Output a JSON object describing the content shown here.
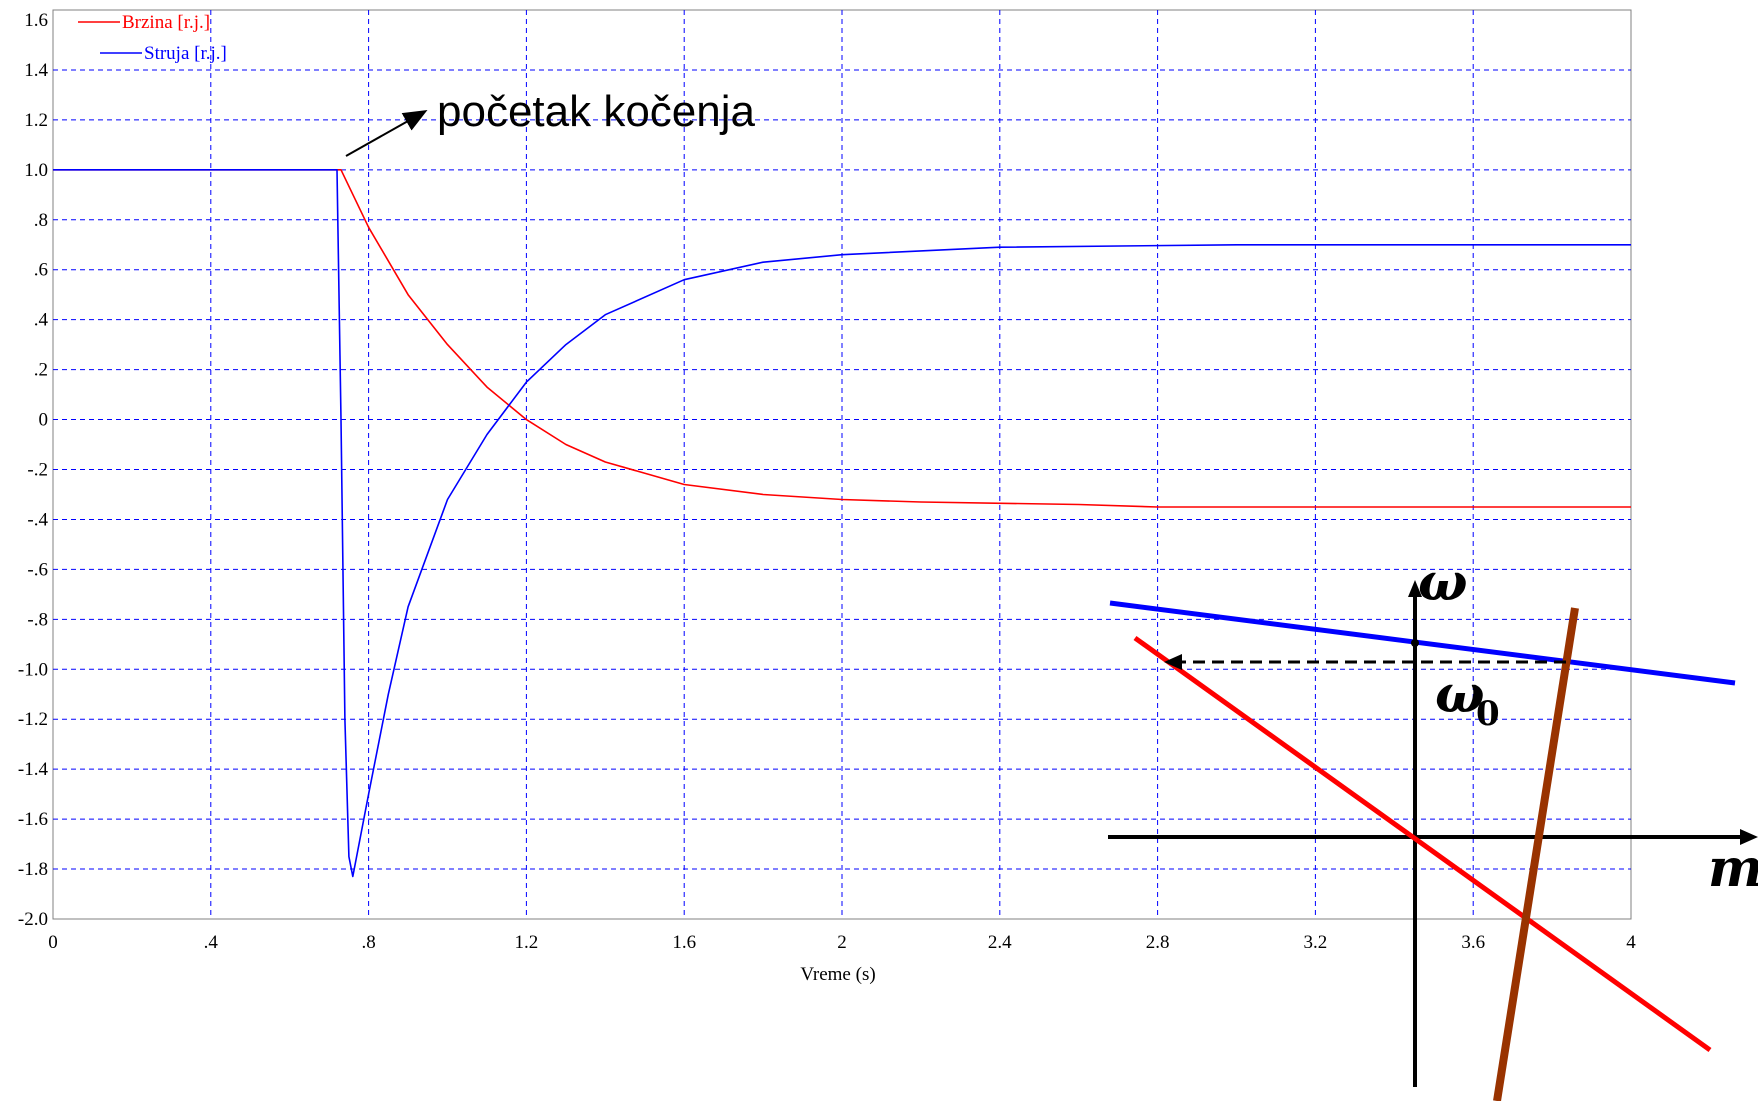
{
  "chart_data": [
    {
      "type": "line",
      "title": "",
      "xlabel": "Vreme (s)",
      "ylabel": "",
      "xlim": [
        0,
        4
      ],
      "ylim": [
        -2.0,
        1.7
      ],
      "grid": true,
      "legend_position": "top-left",
      "x_ticks": [
        "0",
        ".4",
        ".8",
        "1.2",
        "1.6",
        "2",
        "2.4",
        "2.8",
        "3.2",
        "3.6",
        "4"
      ],
      "y_ticks": [
        "1.6",
        "1.4",
        "1.2",
        "1.0",
        ".8",
        ".6",
        ".4",
        ".2",
        "0",
        "-.2",
        "-.4",
        "-.6",
        "-.8",
        "-1.0",
        "-1.2",
        "-1.4",
        "-1.6",
        "-1.8",
        "-2.0"
      ],
      "series": [
        {
          "name": "Brzina [r.j.]",
          "color": "#ff0000",
          "x": [
            0,
            0.73,
            0.8,
            0.9,
            1.0,
            1.1,
            1.2,
            1.3,
            1.4,
            1.6,
            1.8,
            2.0,
            2.2,
            2.6,
            2.8,
            3.2,
            4.0
          ],
          "y": [
            1.0,
            1.0,
            0.77,
            0.5,
            0.3,
            0.13,
            0.0,
            -0.1,
            -0.17,
            -0.26,
            -0.3,
            -0.32,
            -0.33,
            -0.34,
            -0.35,
            -0.35,
            -0.35
          ]
        },
        {
          "name": "Struja [r.j.]",
          "color": "#0000ff",
          "x": [
            0,
            0.72,
            0.73,
            0.74,
            0.75,
            0.76,
            0.8,
            0.85,
            0.9,
            1.0,
            1.1,
            1.2,
            1.3,
            1.4,
            1.6,
            1.8,
            2.0,
            2.4,
            3.0,
            4.0
          ],
          "y": [
            1.0,
            1.0,
            0.0,
            -1.2,
            -1.75,
            -1.83,
            -1.5,
            -1.1,
            -0.75,
            -0.32,
            -0.06,
            0.15,
            0.3,
            0.42,
            0.56,
            0.63,
            0.66,
            0.69,
            0.7,
            0.7
          ]
        }
      ],
      "annotations": [
        {
          "text": "početak kočenja",
          "x": 0.73,
          "y": 1.0
        }
      ]
    }
  ],
  "inset": {
    "y_axis_label": "ω",
    "operating_point_label": "ω",
    "operating_point_subscript": "0",
    "x_axis_label": "m",
    "lines": [
      {
        "name": "blue-characteristic",
        "color": "#0000ff"
      },
      {
        "name": "red-characteristic",
        "color": "#ff0000"
      },
      {
        "name": "brown-characteristic",
        "color": "#993300"
      }
    ]
  }
}
